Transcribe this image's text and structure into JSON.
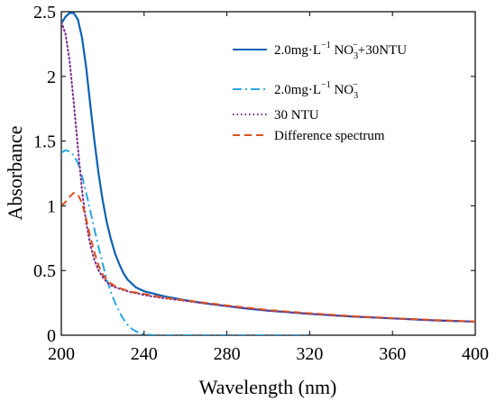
{
  "chart_data": {
    "type": "line",
    "title": "",
    "xlabel": "Wavelength (nm)",
    "ylabel": "Absorbance",
    "xlim": [
      200,
      400
    ],
    "ylim": [
      0,
      2.5
    ],
    "xticks": [
      200,
      240,
      280,
      320,
      360,
      400
    ],
    "xtick_labels": [
      "200",
      "240",
      "280",
      "320",
      "360",
      "400"
    ],
    "yticks": [
      0,
      0.5,
      1,
      1.5,
      2,
      2.5
    ],
    "ytick_labels": [
      "0",
      "0.5",
      "1",
      "1.5",
      "2",
      "2.5"
    ],
    "grid": false,
    "legend_position": "top-right",
    "series": [
      {
        "name": "2.0mg·L−1 NO3−+30NTU",
        "legend": {
          "main": "2.0mg·L",
          "sup1": "−1",
          "mid": " NO",
          "sub": "3",
          "sup2": "−",
          "tail": "+30NTU"
        },
        "color": "#0a61b4",
        "dash": "solid",
        "x": [
          200,
          202,
          204,
          206,
          208,
          210,
          212,
          214,
          216,
          218,
          220,
          222,
          224,
          226,
          228,
          230,
          232,
          234,
          236,
          238,
          240,
          245,
          250,
          255,
          260,
          270,
          280,
          290,
          300,
          320,
          340,
          360,
          380,
          400
        ],
        "y": [
          2.41,
          2.46,
          2.49,
          2.49,
          2.44,
          2.3,
          2.07,
          1.78,
          1.5,
          1.25,
          1.04,
          0.87,
          0.74,
          0.63,
          0.55,
          0.48,
          0.43,
          0.4,
          0.37,
          0.355,
          0.34,
          0.32,
          0.3,
          0.285,
          0.27,
          0.245,
          0.225,
          0.205,
          0.19,
          0.165,
          0.145,
          0.13,
          0.115,
          0.105
        ]
      },
      {
        "name": "2.0mg·L−1 NO3−",
        "legend": {
          "main": "2.0mg·L",
          "sup1": "−1",
          "mid": " NO",
          "sub": "3",
          "sup2": "−",
          "tail": ""
        },
        "color": "#29a7e4",
        "dash": "dashdot",
        "x": [
          200,
          202,
          204,
          206,
          208,
          210,
          212,
          214,
          216,
          218,
          220,
          222,
          224,
          226,
          228,
          230,
          232,
          234,
          236,
          238,
          240,
          242,
          244,
          246,
          250,
          260,
          280,
          300,
          320
        ],
        "y": [
          1.41,
          1.43,
          1.42,
          1.39,
          1.33,
          1.23,
          1.1,
          0.96,
          0.82,
          0.68,
          0.55,
          0.43,
          0.33,
          0.25,
          0.18,
          0.125,
          0.08,
          0.05,
          0.03,
          0.015,
          0.008,
          0.004,
          0.002,
          0.001,
          0,
          0,
          0,
          0,
          0
        ]
      },
      {
        "name": "30 NTU",
        "legend": {
          "main": "30 NTU"
        },
        "color": "#7b2a8e",
        "dash": "dotted",
        "x": [
          200,
          202,
          204,
          206,
          208,
          210,
          212,
          214,
          216,
          218,
          220,
          222,
          224,
          226,
          228,
          230,
          232,
          234,
          236,
          238,
          240,
          250,
          260,
          280,
          300,
          320,
          340,
          360,
          380,
          400
        ],
        "y": [
          2.42,
          2.33,
          2.12,
          1.8,
          1.45,
          1.12,
          0.87,
          0.7,
          0.58,
          0.5,
          0.45,
          0.41,
          0.385,
          0.37,
          0.36,
          0.35,
          0.34,
          0.33,
          0.325,
          0.32,
          0.31,
          0.285,
          0.265,
          0.225,
          0.19,
          0.165,
          0.145,
          0.13,
          0.115,
          0.105
        ]
      },
      {
        "name": "Difference spectrum",
        "legend": {
          "main": "Difference spectrum"
        },
        "color": "#d9531e",
        "dash": "dashed",
        "x": [
          200,
          202,
          204,
          206,
          208,
          210,
          212,
          214,
          216,
          218,
          220,
          222,
          224,
          226,
          228,
          230,
          232,
          234,
          236,
          238,
          240,
          250,
          260,
          280,
          300,
          320,
          340,
          360,
          380,
          400
        ],
        "y": [
          1.0,
          1.03,
          1.07,
          1.1,
          1.09,
          1.02,
          0.9,
          0.76,
          0.64,
          0.54,
          0.47,
          0.43,
          0.4,
          0.38,
          0.365,
          0.355,
          0.345,
          0.335,
          0.33,
          0.325,
          0.32,
          0.29,
          0.27,
          0.23,
          0.195,
          0.17,
          0.148,
          0.132,
          0.118,
          0.106
        ]
      }
    ]
  }
}
